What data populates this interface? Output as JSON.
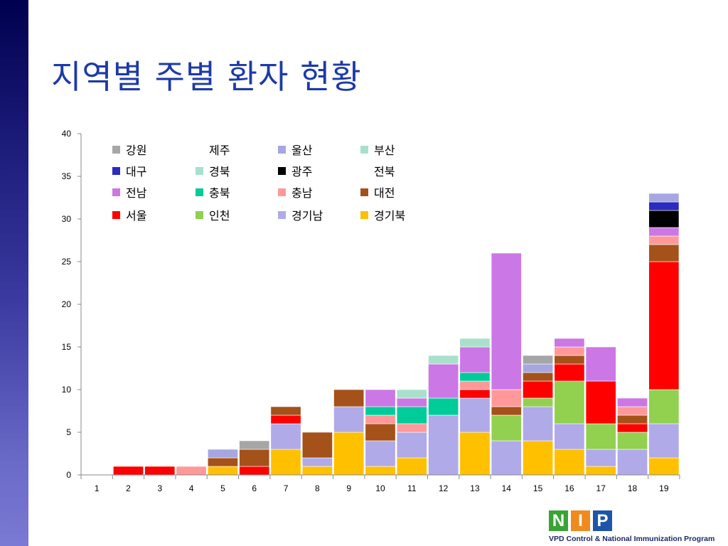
{
  "title": "지역별 주별 환자 현황",
  "logo": {
    "letters": [
      "N",
      "I",
      "P"
    ],
    "tagline": "VPD Control & National Immunization Program",
    "colors": [
      "#3aa335",
      "#f08a1e",
      "#1f55a8"
    ]
  },
  "chart_data": {
    "type": "bar",
    "stacked": true,
    "categories": [
      "1",
      "2",
      "3",
      "4",
      "5",
      "6",
      "7",
      "8",
      "9",
      "10",
      "11",
      "12",
      "13",
      "14",
      "15",
      "16",
      "17",
      "18",
      "19"
    ],
    "ylim": [
      0,
      40
    ],
    "yticks": [
      0,
      5,
      10,
      15,
      20,
      25,
      30,
      35,
      40
    ],
    "grid": false,
    "legend_position": "top-left",
    "series": [
      {
        "name": "경기북",
        "color": "#ffc000",
        "values": [
          0,
          0,
          0,
          0,
          1,
          0,
          3,
          1,
          5,
          1,
          2,
          0,
          5,
          0,
          4,
          3,
          1,
          0,
          2
        ]
      },
      {
        "name": "경기남",
        "color": "#b0aae8",
        "values": [
          0,
          0,
          0,
          0,
          0,
          0,
          3,
          1,
          3,
          3,
          3,
          7,
          4,
          4,
          4,
          3,
          2,
          3,
          4
        ]
      },
      {
        "name": "인천",
        "color": "#92d050",
        "values": [
          0,
          0,
          0,
          0,
          0,
          0,
          0,
          0,
          0,
          0,
          0,
          0,
          0,
          3,
          1,
          5,
          3,
          2,
          4
        ]
      },
      {
        "name": "서울",
        "color": "#ff0000",
        "values": [
          0,
          1,
          1,
          0,
          0,
          1,
          1,
          0,
          0,
          0,
          0,
          0,
          1,
          0,
          2,
          2,
          5,
          1,
          15
        ]
      },
      {
        "name": "대전",
        "color": "#a5511a",
        "values": [
          0,
          0,
          0,
          0,
          1,
          2,
          1,
          3,
          2,
          2,
          0,
          0,
          0,
          1,
          1,
          1,
          0,
          1,
          2
        ]
      },
      {
        "name": "충남",
        "color": "#ff9999",
        "values": [
          0,
          0,
          0,
          1,
          0,
          0,
          0,
          0,
          0,
          1,
          1,
          0,
          1,
          2,
          0,
          1,
          0,
          1,
          1
        ]
      },
      {
        "name": "충북",
        "color": "#00cc99",
        "values": [
          0,
          0,
          0,
          0,
          0,
          0,
          0,
          0,
          0,
          1,
          2,
          2,
          1,
          0,
          0,
          0,
          0,
          0,
          0
        ]
      },
      {
        "name": "전남",
        "color": "#cc77e6",
        "values": [
          0,
          0,
          0,
          0,
          0,
          0,
          0,
          0,
          0,
          2,
          1,
          4,
          3,
          16,
          0,
          1,
          4,
          1,
          1
        ]
      },
      {
        "name": "전북",
        "color": "#ffffff",
        "values": [
          0,
          0,
          0,
          0,
          0,
          0,
          0,
          0,
          0,
          0,
          0,
          0,
          0,
          0,
          0,
          0,
          0,
          0,
          0
        ]
      },
      {
        "name": "광주",
        "color": "#000000",
        "values": [
          0,
          0,
          0,
          0,
          0,
          0,
          0,
          0,
          0,
          0,
          0,
          0,
          0,
          0,
          0,
          0,
          0,
          0,
          2
        ]
      },
      {
        "name": "경북",
        "color": "#a8e0cc",
        "values": [
          0,
          0,
          0,
          0,
          0,
          0,
          0,
          0,
          0,
          0,
          1,
          1,
          1,
          0,
          0,
          0,
          0,
          0,
          0
        ]
      },
      {
        "name": "대구",
        "color": "#2b2bbf",
        "values": [
          0,
          0,
          0,
          0,
          0,
          0,
          0,
          0,
          0,
          0,
          0,
          0,
          0,
          0,
          0,
          0,
          0,
          0,
          1
        ]
      },
      {
        "name": "부산",
        "color": "#a8e0cc",
        "values": [
          0,
          0,
          0,
          0,
          0,
          0,
          0,
          0,
          0,
          0,
          0,
          0,
          0,
          0,
          0,
          0,
          0,
          0,
          0
        ]
      },
      {
        "name": "울산",
        "color": "#a6a6e0",
        "values": [
          0,
          0,
          0,
          0,
          1,
          0,
          0,
          0,
          0,
          0,
          0,
          0,
          0,
          0,
          1,
          0,
          0,
          0,
          1
        ]
      },
      {
        "name": "제주",
        "color": "#ffffff",
        "values": [
          0,
          0,
          0,
          0,
          0,
          0,
          0,
          0,
          0,
          0,
          0,
          0,
          0,
          0,
          0,
          0,
          0,
          0,
          0
        ]
      },
      {
        "name": "강원",
        "color": "#a6a6a6",
        "values": [
          0,
          0,
          0,
          0,
          0,
          1,
          0,
          0,
          0,
          0,
          0,
          0,
          0,
          0,
          1,
          0,
          0,
          0,
          0
        ]
      }
    ],
    "legend_order": [
      [
        "강원",
        "제주",
        "울산",
        "부산"
      ],
      [
        "대구",
        "경북",
        "광주",
        "전북"
      ],
      [
        "전남",
        "충북",
        "충남",
        "대전"
      ],
      [
        "서울",
        "인천",
        "경기남",
        "경기북"
      ]
    ]
  }
}
